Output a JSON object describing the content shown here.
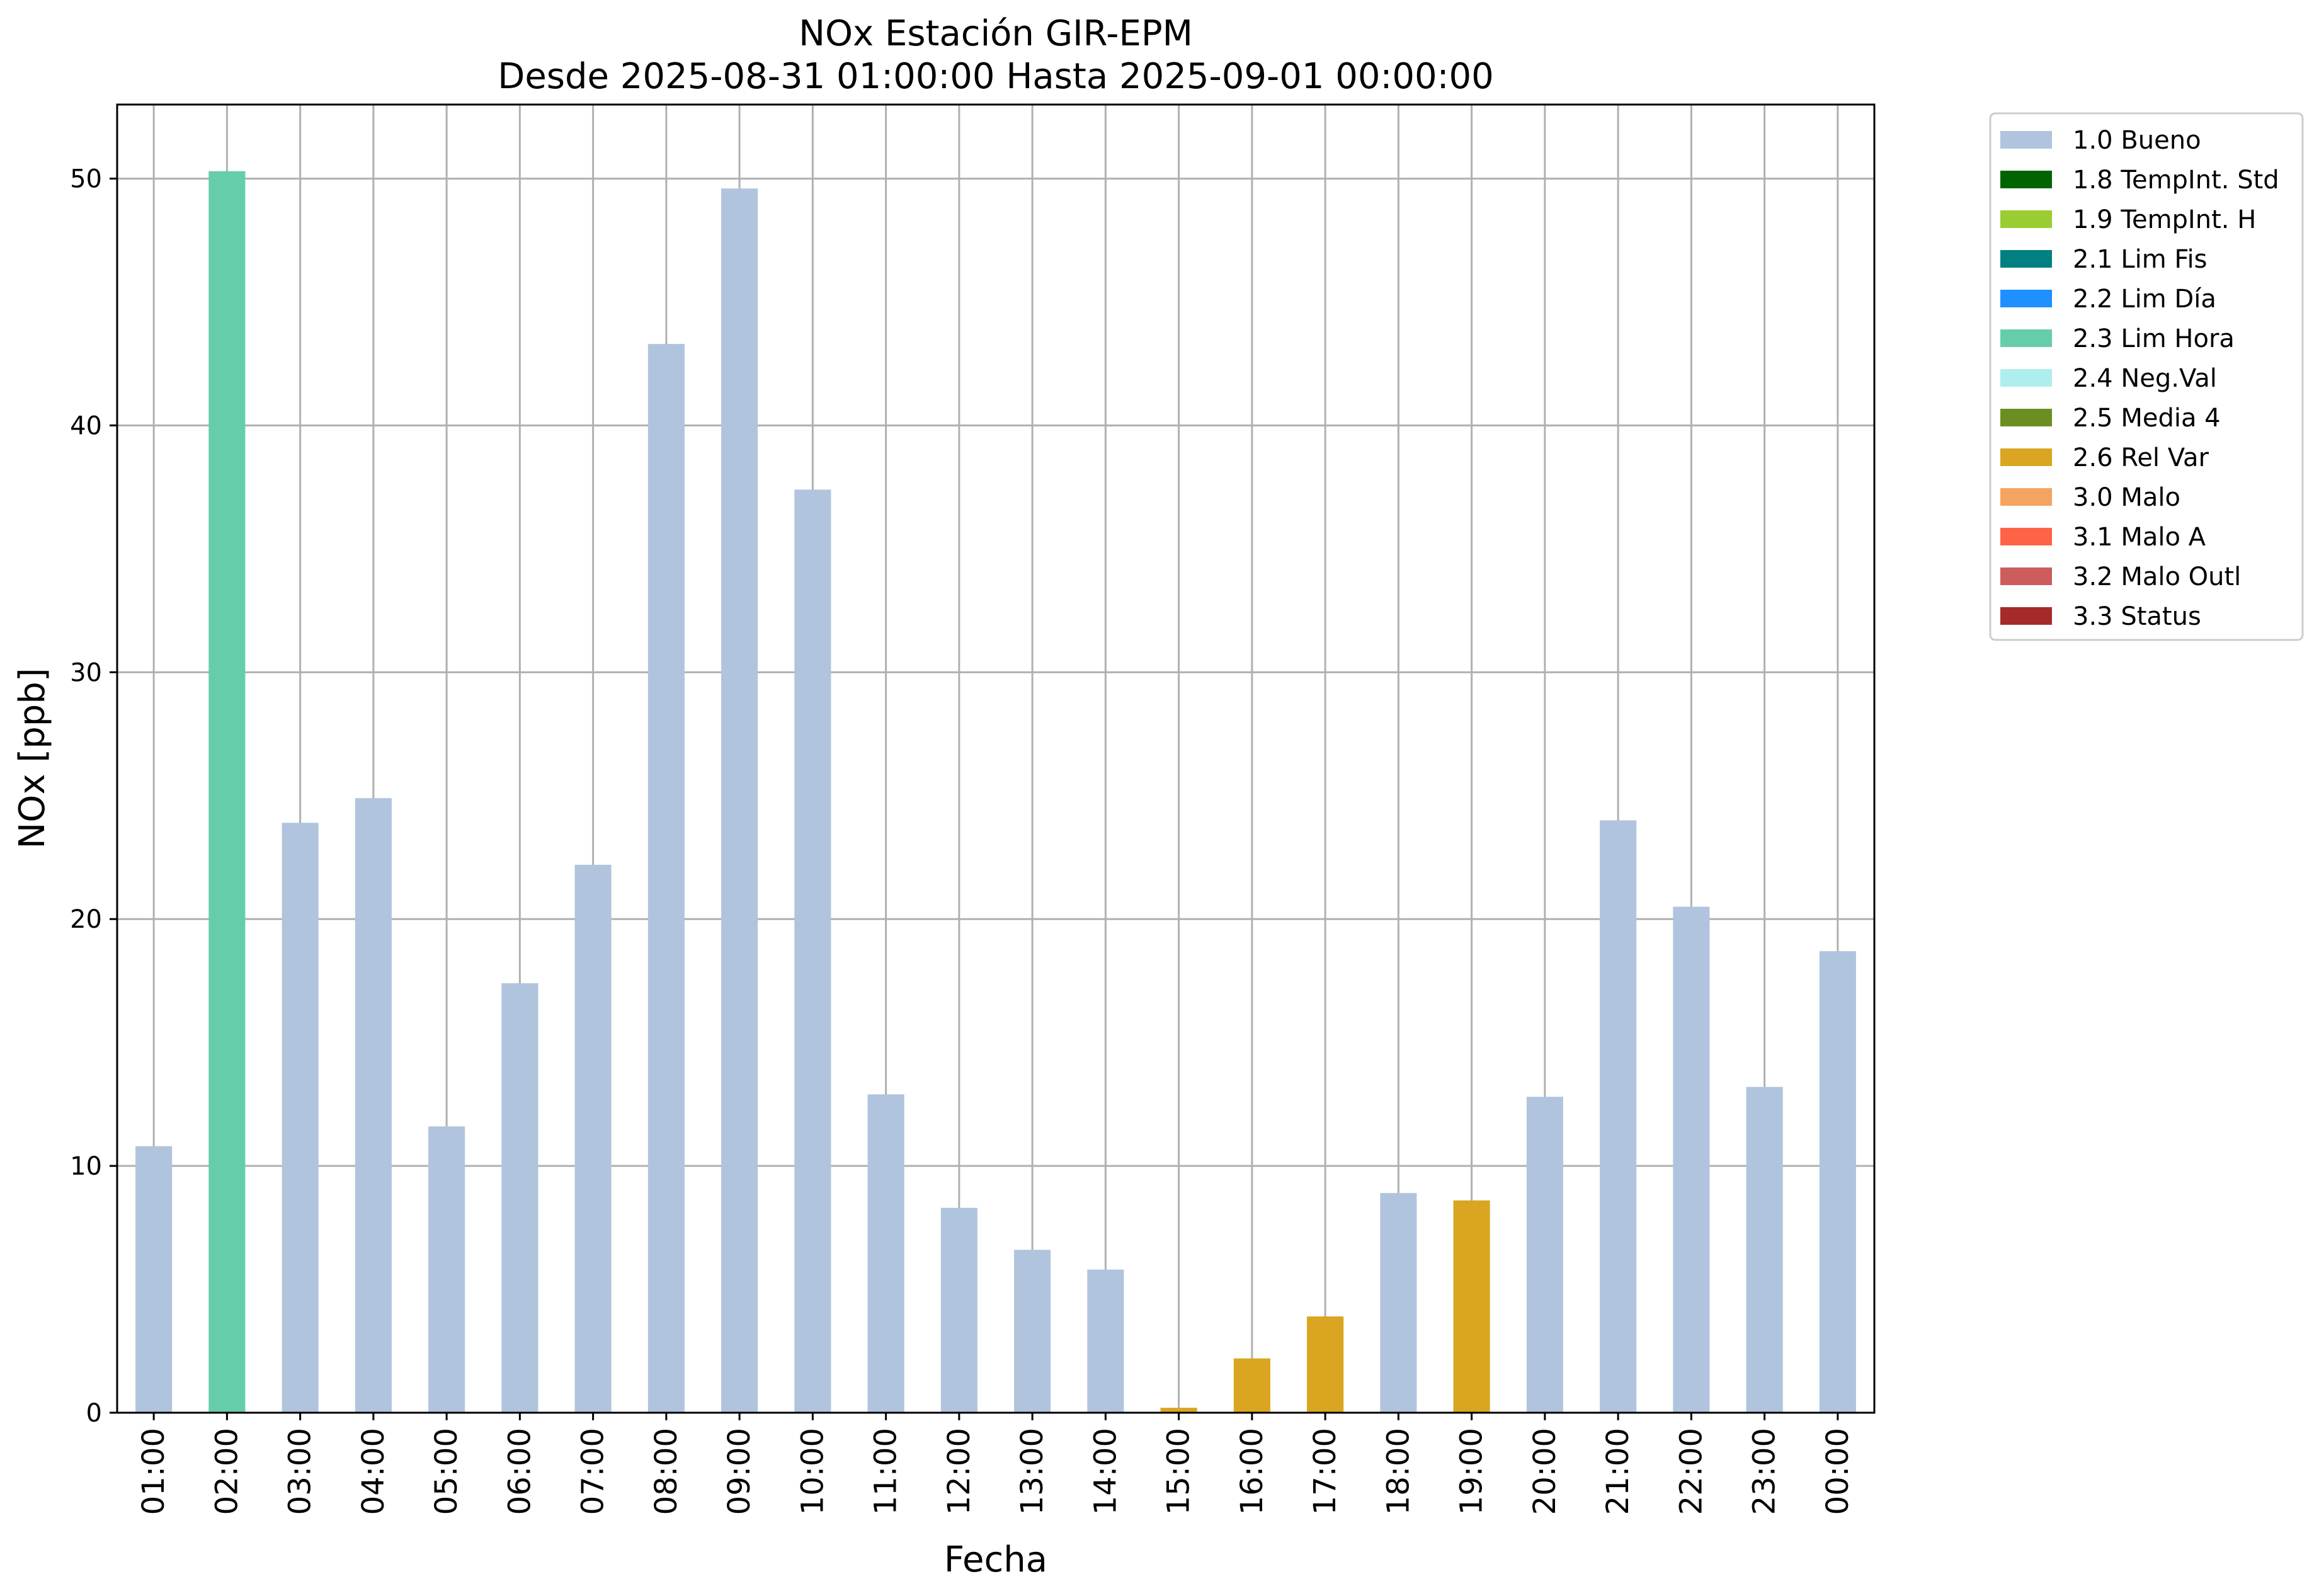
{
  "chart_data": {
    "type": "bar",
    "title": "NOx Estación GIR-EPM",
    "subtitle": "Desde 2025-08-31 01:00:00 Hasta 2025-09-01 00:00:00",
    "xlabel": "Fecha",
    "ylabel": "NOx [ppb]",
    "ylim": [
      0,
      53
    ],
    "yticks": [
      0,
      10,
      20,
      30,
      40,
      50
    ],
    "grid": true,
    "legend_position": "outside-top-right",
    "categories": [
      "01:00",
      "02:00",
      "03:00",
      "04:00",
      "05:00",
      "06:00",
      "07:00",
      "08:00",
      "09:00",
      "10:00",
      "11:00",
      "12:00",
      "13:00",
      "14:00",
      "15:00",
      "16:00",
      "17:00",
      "18:00",
      "19:00",
      "20:00",
      "21:00",
      "22:00",
      "23:00",
      "00:00"
    ],
    "values": [
      10.8,
      50.3,
      23.9,
      24.9,
      11.6,
      17.4,
      22.2,
      43.3,
      49.6,
      37.4,
      12.9,
      8.3,
      6.6,
      5.8,
      0.2,
      2.2,
      3.9,
      8.9,
      8.6,
      12.8,
      24.0,
      20.5,
      13.2,
      18.7
    ],
    "flags": [
      "1.0 Bueno",
      "2.3 Lim Hora",
      "1.0 Bueno",
      "1.0 Bueno",
      "1.0 Bueno",
      "1.0 Bueno",
      "1.0 Bueno",
      "1.0 Bueno",
      "1.0 Bueno",
      "1.0 Bueno",
      "1.0 Bueno",
      "1.0 Bueno",
      "1.0 Bueno",
      "1.0 Bueno",
      "2.6 Rel Var",
      "2.6 Rel Var",
      "2.6 Rel Var",
      "1.0 Bueno",
      "2.6 Rel Var",
      "1.0 Bueno",
      "1.0 Bueno",
      "1.0 Bueno",
      "1.0 Bueno",
      "1.0 Bueno"
    ],
    "legend": [
      {
        "name": "1.0 Bueno",
        "color": "#b0c4de"
      },
      {
        "name": "1.8 TempInt. Std",
        "color": "#006400"
      },
      {
        "name": "1.9 TempInt. H",
        "color": "#9acd32"
      },
      {
        "name": "2.1 Lim Fis",
        "color": "#008080"
      },
      {
        "name": "2.2 Lim Día",
        "color": "#1e90ff"
      },
      {
        "name": "2.3 Lim Hora",
        "color": "#66cdaa"
      },
      {
        "name": "2.4 Neg.Val",
        "color": "#afeeee"
      },
      {
        "name": "2.5 Media 4",
        "color": "#6b8e23"
      },
      {
        "name": "2.6 Rel Var",
        "color": "#daa520"
      },
      {
        "name": "3.0 Malo",
        "color": "#f4a460"
      },
      {
        "name": "3.1 Malo A",
        "color": "#ff6347"
      },
      {
        "name": "3.2 Malo Outl",
        "color": "#cd5c5c"
      },
      {
        "name": "3.3 Status",
        "color": "#a52a2a"
      }
    ]
  }
}
